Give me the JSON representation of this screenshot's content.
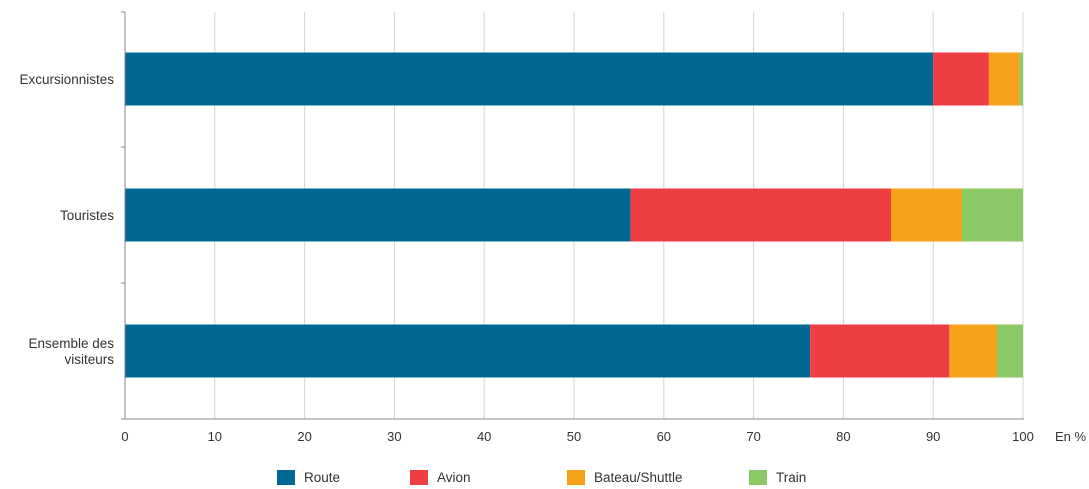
{
  "chart_data": {
    "type": "bar",
    "orientation": "horizontal",
    "stacked": true,
    "categories": [
      [
        "Excursionnistes"
      ],
      [
        "Touristes"
      ],
      [
        "Ensemble des",
        "visiteurs"
      ]
    ],
    "series": [
      {
        "name": "Route",
        "color": "#006892",
        "values": [
          90.0,
          56.3,
          76.3
        ]
      },
      {
        "name": "Avion",
        "color": "#EE3E44",
        "values": [
          6.2,
          29.0,
          15.5
        ]
      },
      {
        "name": "Bateau/Shuttle",
        "color": "#F7A11B",
        "values": [
          3.4,
          7.9,
          5.3
        ]
      },
      {
        "name": "Train",
        "color": "#8BC966",
        "values": [
          0.4,
          6.8,
          2.9
        ]
      }
    ],
    "xlim": [
      0,
      100
    ],
    "xticks": [
      0,
      10,
      20,
      30,
      40,
      50,
      60,
      70,
      80,
      90,
      100
    ],
    "xunit": "En %",
    "grid": "vertical",
    "legend": "bottom"
  }
}
